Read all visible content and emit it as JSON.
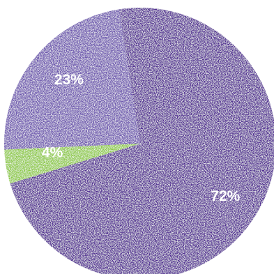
{
  "chart_data": {
    "type": "pie",
    "slices": [
      {
        "label": "72%",
        "value": 72,
        "color": "#4f2a91"
      },
      {
        "label": "4%",
        "value": 4,
        "color": "#8bc83f"
      },
      {
        "label": "23%",
        "value": 23,
        "color": "#6a52ad"
      }
    ],
    "title": "",
    "legend": "none",
    "texture": "speckled"
  }
}
